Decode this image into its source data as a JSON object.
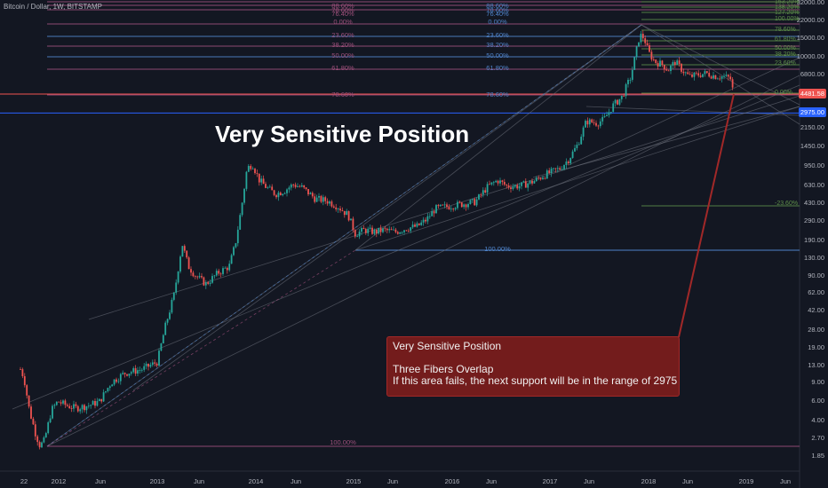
{
  "header": {
    "title": "Bitcoin / Dollar, 1W, BITSTAMP"
  },
  "headline": "Very Sensitive Position",
  "callout": {
    "title": "Very Sensitive Position",
    "line1": "Three Fibers Overlap",
    "line2": "If this area fails, the next support will be in the range of 2975"
  },
  "y_axis_labels": [
    "32000.00",
    "22000.00",
    "15000.00",
    "10000.00",
    "6800.00",
    "2150.00",
    "1450.00",
    "950.00",
    "630.00",
    "430.00",
    "290.00",
    "190.00",
    "130.00",
    "90.00",
    "62.00",
    "42.00",
    "28.00",
    "19.00",
    "13.00",
    "9.00",
    "6.00",
    "4.00",
    "2.70",
    "1.85"
  ],
  "price_tags": {
    "current": "4481.58",
    "support": "2975.00"
  },
  "x_axis_labels": [
    "22",
    "2012",
    "Jun",
    "2013",
    "Jun",
    "2014",
    "Jun",
    "2015",
    "Jun",
    "2016",
    "Jun",
    "2017",
    "Jun",
    "2018",
    "Jun",
    "2019",
    "Jun"
  ],
  "fib_left_labels": [
    "88.60%",
    "78.60%",
    "76.40%",
    "0.00%",
    "23.60%",
    "38.20%",
    "50.00%",
    "61.80%",
    "78.60%",
    "100.00%"
  ],
  "fib_mid_labels": [
    "88.60%",
    "78.60%",
    "76.40%",
    "0.00%",
    "23.60%",
    "38.20%",
    "50.00%",
    "61.80%",
    "78.60%",
    "100.00%"
  ],
  "fib_right_labels": [
    "153.20%",
    "138.20%",
    "127.20%",
    "100.00%",
    "78.60%",
    "61.80%",
    "50.00%",
    "38.20%",
    "23.60%",
    "0.00%",
    "-23.60%"
  ],
  "colors": {
    "background": "#131722",
    "up": "#26a69a",
    "down": "#ef5350",
    "callout": "#731c1c",
    "fib_pink": "#9c4f7a",
    "fib_blue": "#4f83c9",
    "fib_green": "#5e8f4a",
    "current_price": "#ef5350",
    "support_price": "#2962ff"
  }
}
